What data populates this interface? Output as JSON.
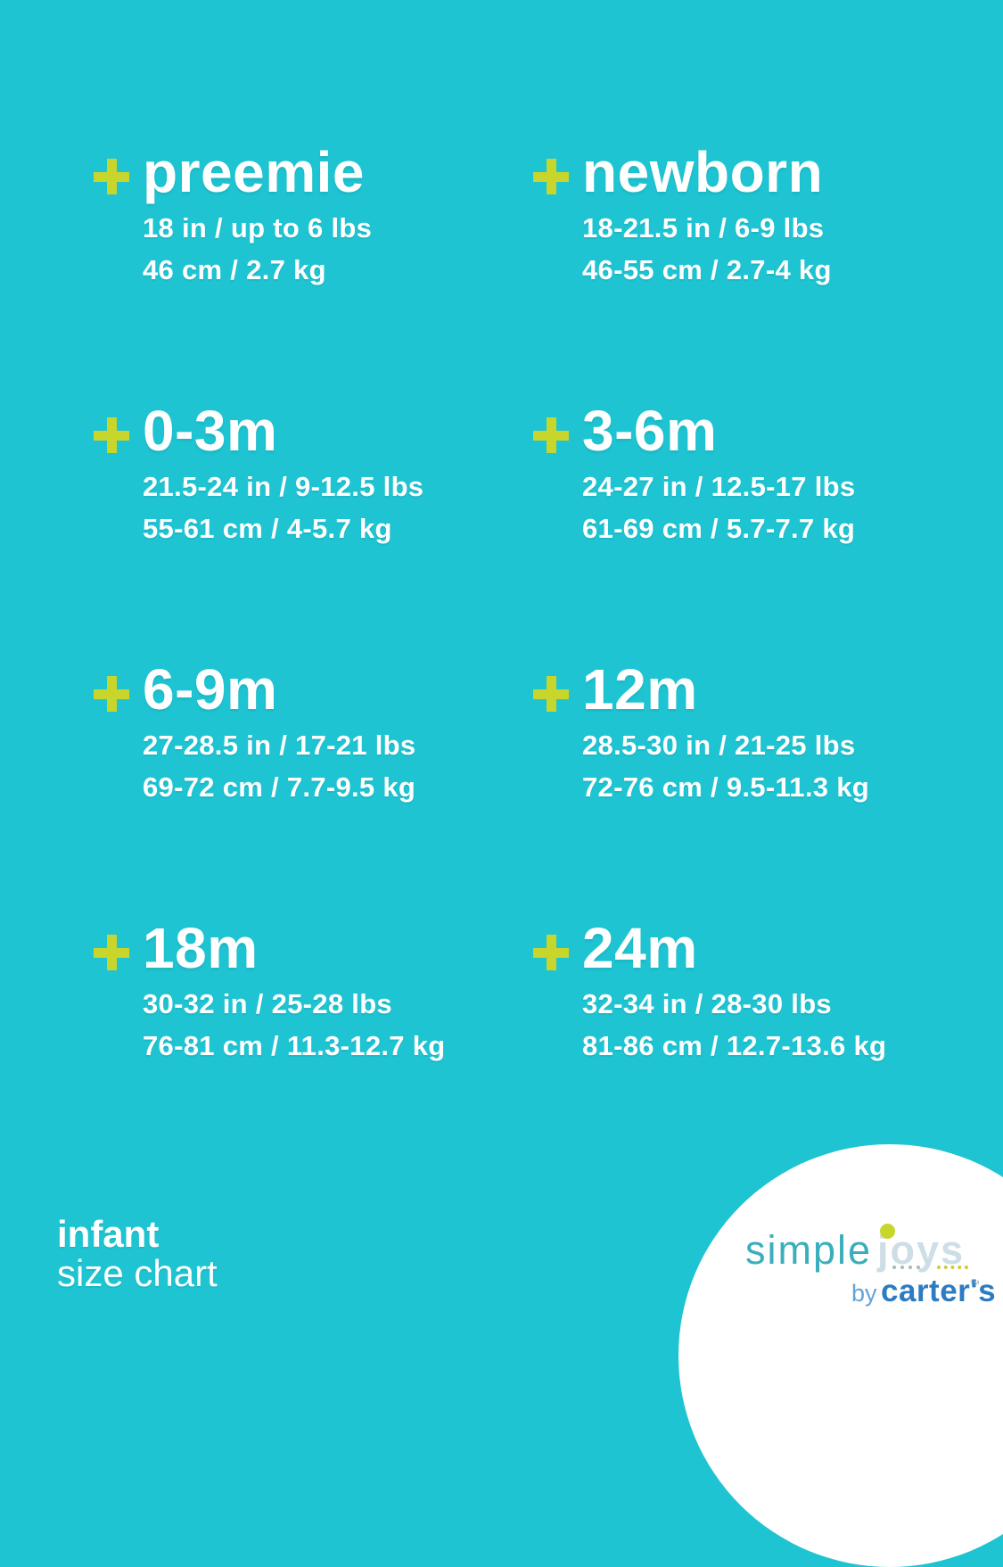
{
  "colors": {
    "background": "#1fc4d2",
    "accent_plus": "#c8d52b",
    "text": "#ffffff",
    "logo_simple": "#3baebe",
    "logo_joys": "#cddee7",
    "logo_dot_yellow": "#c8d52b",
    "logo_dots_gray": "#a9b8bb",
    "logo_by_blue": "#63a3d8",
    "logo_carters_blue": "#2c7cc4"
  },
  "sizes": [
    {
      "label": "preemie",
      "imperial": "18 in / up to 6 lbs",
      "metric": "46 cm / 2.7 kg"
    },
    {
      "label": "newborn",
      "imperial": "18-21.5 in / 6-9 lbs",
      "metric": "46-55 cm / 2.7-4 kg"
    },
    {
      "label": "0-3m",
      "imperial": "21.5-24 in / 9-12.5 lbs",
      "metric": "55-61 cm / 4-5.7 kg"
    },
    {
      "label": "3-6m",
      "imperial": "24-27 in / 12.5-17 lbs",
      "metric": "61-69 cm / 5.7-7.7 kg"
    },
    {
      "label": "6-9m",
      "imperial": "27-28.5 in / 17-21 lbs",
      "metric": "69-72 cm / 7.7-9.5 kg"
    },
    {
      "label": "12m",
      "imperial": "28.5-30 in / 21-25 lbs",
      "metric": "72-76 cm / 9.5-11.3 kg"
    },
    {
      "label": "18m",
      "imperial": "30-32 in / 25-28 lbs",
      "metric": "76-81 cm / 11.3-12.7 kg"
    },
    {
      "label": "24m",
      "imperial": "32-34 in / 28-30 lbs",
      "metric": "81-86 cm / 12.7-13.6 kg"
    }
  ],
  "footer": {
    "category": "infant",
    "subtitle": "size chart"
  },
  "logo": {
    "word1": "simple",
    "word2": "joys",
    "by": "by",
    "brand": "carter's",
    "tm": "™"
  }
}
